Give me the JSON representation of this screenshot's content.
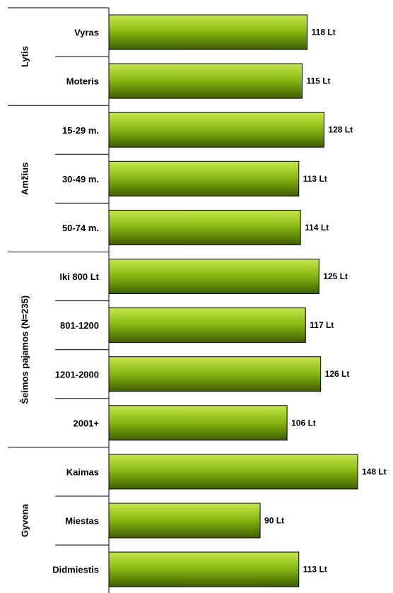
{
  "chart_data": {
    "type": "bar",
    "orientation": "horizontal",
    "title": "",
    "xlabel": "",
    "ylabel": "",
    "xlim": [
      0,
      148
    ],
    "grid": false,
    "value_suffix": " Lt",
    "bar_color": "#7aa80e",
    "groups": [
      {
        "name": "Lytis",
        "categories": [
          "Vyras",
          "Moteris"
        ],
        "values": [
          118,
          115
        ]
      },
      {
        "name": "Amžius",
        "categories": [
          "15-29 m.",
          "30-49 m.",
          "50-74 m."
        ],
        "values": [
          128,
          113,
          114
        ]
      },
      {
        "name": "Šeimos pajamos (N=235)",
        "categories": [
          "Iki 800 Lt",
          "801-1200",
          "1201-2000",
          "2001+"
        ],
        "values": [
          125,
          117,
          126,
          106
        ]
      },
      {
        "name": "Gyvena",
        "categories": [
          "Kaimas",
          "Miestas",
          "Didmiestis"
        ],
        "values": [
          148,
          90,
          113
        ]
      }
    ]
  }
}
